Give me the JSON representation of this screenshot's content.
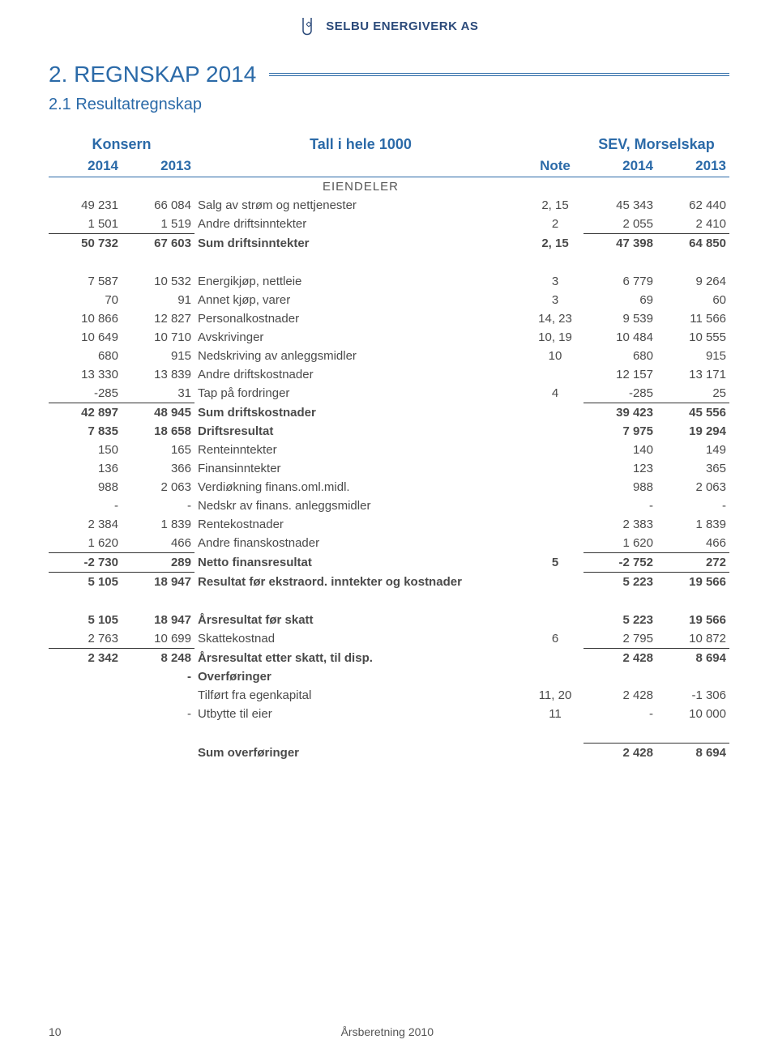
{
  "logo_text": "SELBU ENERGIVERK AS",
  "section_title": "2. REGNSKAP 2014",
  "subtitle": "2.1 Resultatregnskap",
  "header": {
    "left_group": "Konsern",
    "middle": "Tall i hele 1000",
    "right_group": "SEV, Morselskap",
    "y2014": "2014",
    "y2013": "2013",
    "note": "Note"
  },
  "section_label": "EIENDELER",
  "rows": [
    {
      "c1": "49 231",
      "c2": "66 084",
      "c3": "Salg av strøm og nettjenester",
      "c4": "2, 15",
      "c5": "45 343",
      "c6": "62 440"
    },
    {
      "c1": "1 501",
      "c2": "1 519",
      "c3": "Andre driftsinntekter",
      "c4": "2",
      "c5": "2 055",
      "c6": "2 410"
    },
    {
      "c1": "50 732",
      "c2": "67 603",
      "c3": "Sum driftsinntekter",
      "c4": "2, 15",
      "c5": "47 398",
      "c6": "64 850",
      "bold": true,
      "rule_before": true
    },
    {
      "spacer": true
    },
    {
      "c1": "7 587",
      "c2": "10 532",
      "c3": "Energikjøp, nettleie",
      "c4": "3",
      "c5": "6 779",
      "c6": "9 264"
    },
    {
      "c1": "70",
      "c2": "91",
      "c3": "Annet kjøp, varer",
      "c4": "3",
      "c5": "69",
      "c6": "60"
    },
    {
      "c1": "10 866",
      "c2": "12 827",
      "c3": "Personalkostnader",
      "c4": "14, 23",
      "c5": "9 539",
      "c6": "11 566"
    },
    {
      "c1": "10 649",
      "c2": "10 710",
      "c3": "Avskrivinger",
      "c4": "10, 19",
      "c5": "10 484",
      "c6": "10 555"
    },
    {
      "c1": "680",
      "c2": "915",
      "c3": "Nedskriving av anleggsmidler",
      "c4": "10",
      "c5": "680",
      "c6": "915"
    },
    {
      "c1": "13 330",
      "c2": "13 839",
      "c3": "Andre driftskostnader",
      "c4": "",
      "c5": "12 157",
      "c6": "13 171"
    },
    {
      "c1": "-285",
      "c2": "31",
      "c3": "Tap på fordringer",
      "c4": "4",
      "c5": "-285",
      "c6": "25"
    },
    {
      "c1": "42 897",
      "c2": "48 945",
      "c3": "Sum driftskostnader",
      "c4": "",
      "c5": "39 423",
      "c6": "45 556",
      "bold": true,
      "rule_before": true
    },
    {
      "c1": "7 835",
      "c2": "18 658",
      "c3": "Driftsresultat",
      "c4": "",
      "c5": "7 975",
      "c6": "19 294",
      "bold": true
    },
    {
      "c1": "150",
      "c2": "165",
      "c3": "Renteinntekter",
      "c4": "",
      "c5": "140",
      "c6": "149"
    },
    {
      "c1": "136",
      "c2": "366",
      "c3": "Finansinntekter",
      "c4": "",
      "c5": "123",
      "c6": "365"
    },
    {
      "c1": "988",
      "c2": "2 063",
      "c3": "Verdiøkning finans.oml.midl.",
      "c4": "",
      "c5": "988",
      "c6": "2 063"
    },
    {
      "c1": "-",
      "c2": "-",
      "c3": "Nedskr av finans. anleggsmidler",
      "c4": "",
      "c5": "-",
      "c6": "-"
    },
    {
      "c1": "2 384",
      "c2": "1 839",
      "c3": "Rentekostnader",
      "c4": "",
      "c5": "2 383",
      "c6": "1 839"
    },
    {
      "c1": "1 620",
      "c2": "466",
      "c3": "Andre finanskostnader",
      "c4": "",
      "c5": "1 620",
      "c6": "466"
    },
    {
      "c1": "-2 730",
      "c2": "289",
      "c3": "Netto finansresultat",
      "c4": "5",
      "c5": "-2 752",
      "c6": "272",
      "bold": true,
      "rule_before": true
    },
    {
      "c1": "5 105",
      "c2": "18 947",
      "c3": "Resultat før ekstraord. inntekter og kostnader",
      "c4": "",
      "c5": "5 223",
      "c6": "19 566",
      "bold": true,
      "rule_before": true
    },
    {
      "spacer": true
    },
    {
      "c1": "5 105",
      "c2": "18 947",
      "c3": "Årsresultat før skatt",
      "c4": "",
      "c5": "5 223",
      "c6": "19 566",
      "bold": true
    },
    {
      "c1": "2 763",
      "c2": "10 699",
      "c3": "Skattekostnad",
      "c4": "6",
      "c5": "2 795",
      "c6": "10 872"
    },
    {
      "c1": "2 342",
      "c2": "8 248",
      "c3": "Årsresultat etter skatt,  til disp.",
      "c4": "",
      "c5": "2 428",
      "c6": "8 694",
      "bold": true,
      "rule_before": true
    },
    {
      "c1": "",
      "c2": "-",
      "c3": "Overføringer",
      "c4": "",
      "c5": "",
      "c6": "",
      "bold": true
    },
    {
      "c1": "",
      "c2": "",
      "c3": "Tilført fra egenkapital",
      "c4": "11, 20",
      "c5": "2 428",
      "c6": "-1 306"
    },
    {
      "c1": "",
      "c2": "-",
      "c3": "Utbytte til eier",
      "c4": "11",
      "c5": "-",
      "c6": "10 000"
    },
    {
      "spacer": true
    },
    {
      "c1": "",
      "c2": "",
      "c3": "Sum overføringer",
      "c4": "",
      "c5": "2 428",
      "c6": "8 694",
      "bold": true,
      "rule_before": true,
      "rule_right_only": true
    }
  ],
  "footer_page": "10",
  "footer_text": "Årsberetning 2010",
  "colors": {
    "accent": "#2b6aa8",
    "text": "#4a4a4a",
    "background": "#ffffff"
  }
}
